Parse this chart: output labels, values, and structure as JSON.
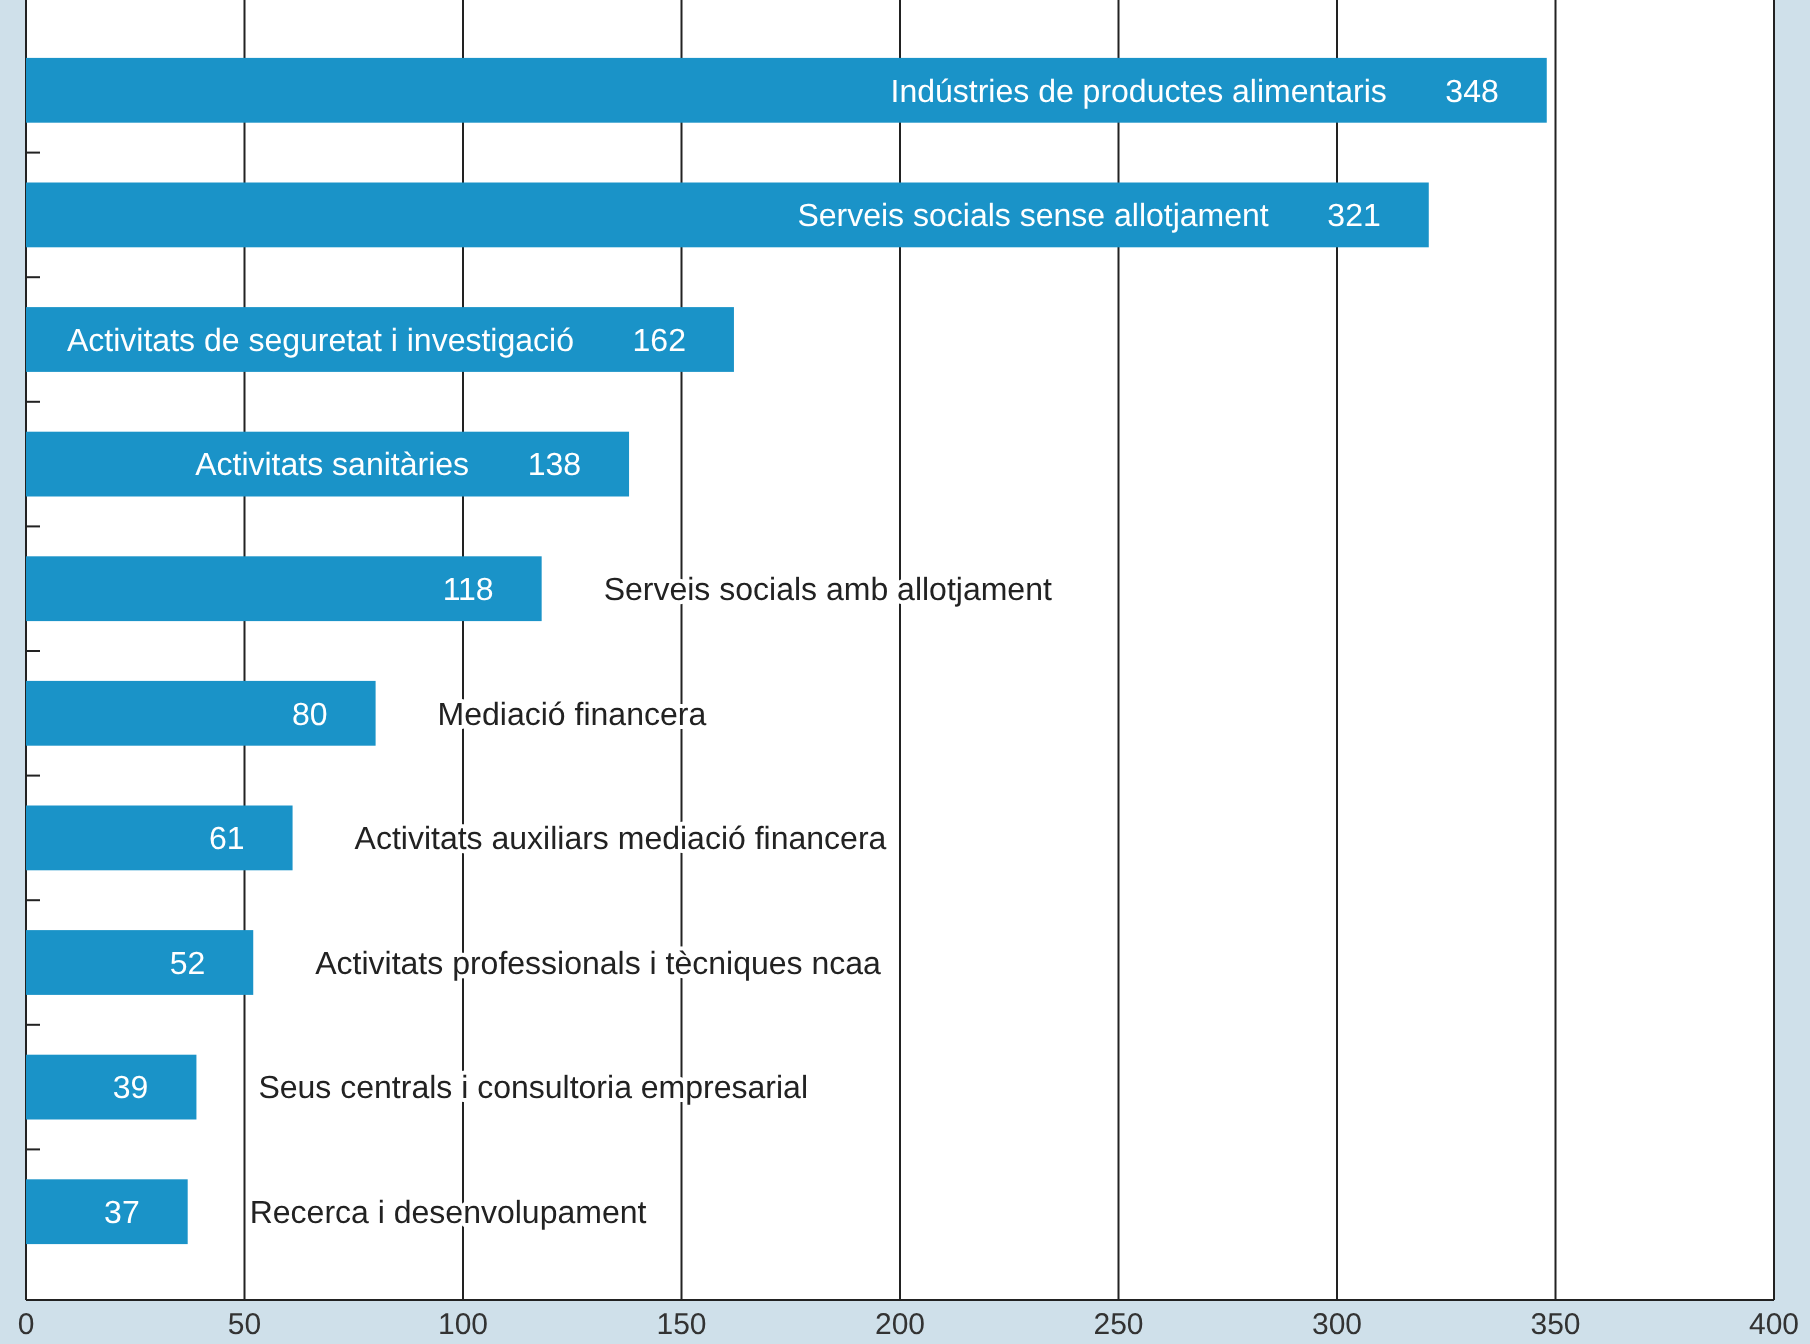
{
  "chart_data": {
    "type": "bar",
    "orientation": "horizontal",
    "categories": [
      "Indústries de productes alimentaris",
      "Serveis socials sense allotjament",
      "Activitats de seguretat i investigació",
      "Activitats sanitàries",
      "Serveis socials amb allotjament",
      "Mediació financera",
      "Activitats auxiliars mediació financera",
      "Activitats professionals i tècniques ncaa",
      "Seus centrals i consultoria empresarial",
      "Recerca i desenvolupament"
    ],
    "values": [
      348,
      321,
      162,
      138,
      118,
      80,
      61,
      52,
      39,
      37
    ],
    "color": "#1a93c8",
    "xlim": [
      0,
      400
    ],
    "xticks": [
      0,
      50,
      100,
      150,
      200,
      250,
      300,
      350,
      400
    ],
    "grid": "x",
    "data_labels": true,
    "tick_labels": "x"
  }
}
